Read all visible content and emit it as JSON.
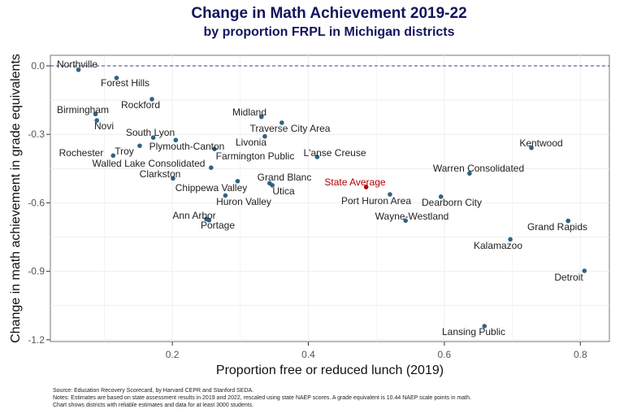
{
  "chart_data": {
    "type": "scatter",
    "title": "Change in Math Achievement 2019-22",
    "subtitle": "by proportion FRPL in Michigan districts",
    "xlabel": "Proportion free or reduced lunch (2019)",
    "ylabel": "Change in math achievement in grade equivalents",
    "xlim": [
      0.02,
      0.85
    ],
    "ylim": [
      -1.22,
      0.05
    ],
    "xticks": [
      "0.2",
      "0.4",
      "0.6",
      "0.8"
    ],
    "yticks": [
      "0.0",
      "-0.3",
      "-0.6",
      "-0.9",
      "-1.2"
    ],
    "grid": true,
    "reference_line": {
      "y": 0,
      "style": "dashed",
      "color": "#3b3b8f"
    },
    "point_color": "#2f6385",
    "highlight_color": "#b00000",
    "points": [
      {
        "name": "Northville",
        "x": 0.062,
        "y": -0.017
      },
      {
        "name": "Forest Hills",
        "x": 0.118,
        "y": -0.053
      },
      {
        "name": "Rockford",
        "x": 0.17,
        "y": -0.146
      },
      {
        "name": "Birmingham",
        "x": 0.087,
        "y": -0.211
      },
      {
        "name": "Novi",
        "x": 0.089,
        "y": -0.239
      },
      {
        "name": "South Lyon",
        "x": 0.172,
        "y": -0.314
      },
      {
        "name": "Plymouth-Canton",
        "x": 0.205,
        "y": -0.325
      },
      {
        "name": "Troy",
        "x": 0.152,
        "y": -0.35
      },
      {
        "name": "Rochester",
        "x": 0.113,
        "y": -0.393
      },
      {
        "name": "Farmington Public",
        "x": 0.262,
        "y": -0.364
      },
      {
        "name": "Walled Lake Consolidated",
        "x": 0.257,
        "y": -0.446
      },
      {
        "name": "Clarkston",
        "x": 0.201,
        "y": -0.493
      },
      {
        "name": "Chippewa Valley",
        "x": 0.296,
        "y": -0.505
      },
      {
        "name": "Huron Valley",
        "x": 0.278,
        "y": -0.568
      },
      {
        "name": "Grand Blanc",
        "x": 0.343,
        "y": -0.514
      },
      {
        "name": "Utica",
        "x": 0.347,
        "y": -0.523
      },
      {
        "name": "Ann Arbor",
        "x": 0.25,
        "y": -0.671
      },
      {
        "name": "Portage",
        "x": 0.254,
        "y": -0.676
      },
      {
        "name": "Midland",
        "x": 0.331,
        "y": -0.223
      },
      {
        "name": "Traverse City Area",
        "x": 0.361,
        "y": -0.249
      },
      {
        "name": "Livonia",
        "x": 0.336,
        "y": -0.309
      },
      {
        "name": "L'anse Creuse",
        "x": 0.413,
        "y": -0.399
      },
      {
        "name": "State Average",
        "x": 0.485,
        "y": -0.531,
        "highlight": true
      },
      {
        "name": "Port Huron Area",
        "x": 0.52,
        "y": -0.563
      },
      {
        "name": "Wayne-Westland",
        "x": 0.543,
        "y": -0.678
      },
      {
        "name": "Warren Consolidated",
        "x": 0.637,
        "y": -0.471
      },
      {
        "name": "Dearborn City",
        "x": 0.595,
        "y": -0.573
      },
      {
        "name": "Kentwood",
        "x": 0.728,
        "y": -0.359
      },
      {
        "name": "Grand Rapids",
        "x": 0.782,
        "y": -0.679
      },
      {
        "name": "Kalamazoo",
        "x": 0.697,
        "y": -0.76
      },
      {
        "name": "Detroit",
        "x": 0.806,
        "y": -0.898
      },
      {
        "name": "Lansing Public",
        "x": 0.659,
        "y": -1.14
      }
    ],
    "notes": [
      "Source: Education Recovery Scorecard, by Harvard CEPR and Stanford SEDA.",
      "Notes: Estimates are based on state assessment results in 2019 and 2022, rescaled using state NAEP scores. A grade equivalent is 10.44 NAEP scale points in math.",
      "Chart shows districts with reliable estimates and data for at least 3000 students."
    ]
  }
}
